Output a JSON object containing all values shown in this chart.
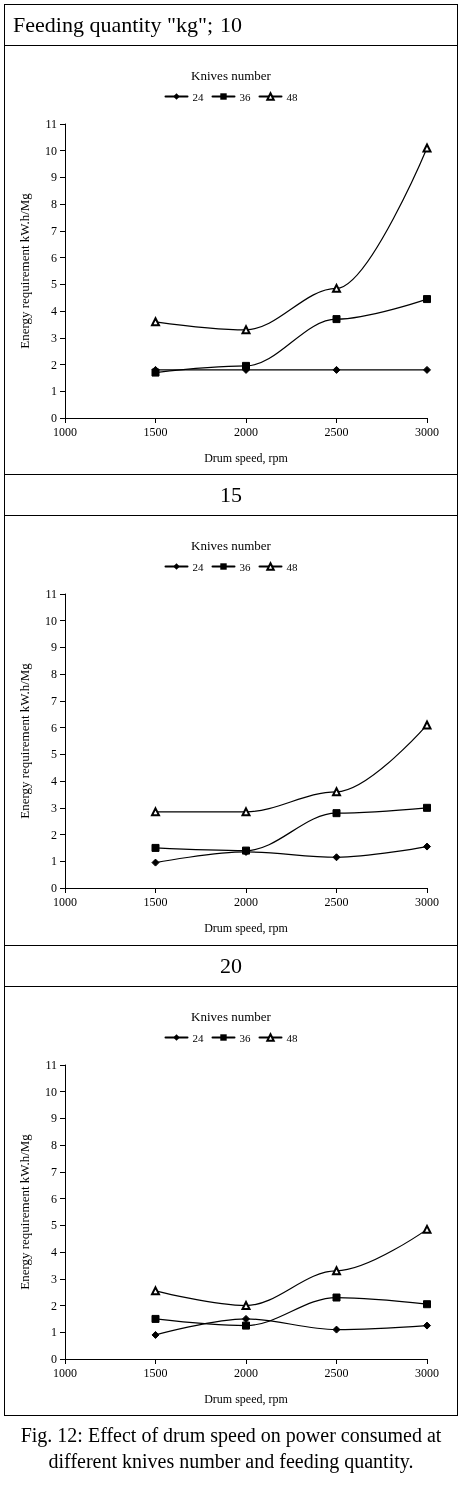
{
  "chart_data": [
    {
      "type": "line",
      "title": "10",
      "annotations": [
        "Feeding quantity \"kg\";",
        "Fig. 12: Effect of drum speed on power consumed at different knives number and feeding quantity."
      ],
      "xlabel": "Drum speed, rpm",
      "ylabel": "Energy requirement kW.h/Mg",
      "legend_title": "Knives number",
      "legend": "top",
      "x": [
        1500,
        2000,
        2500,
        3000
      ],
      "xlim": [
        1000,
        3000
      ],
      "xticks": [
        1000,
        1500,
        2000,
        2500,
        3000
      ],
      "ylim": [
        0,
        11
      ],
      "yticks": [
        0,
        1,
        2,
        3,
        4,
        5,
        6,
        7,
        8,
        9,
        10,
        11
      ],
      "grid": false,
      "line_style": "solid",
      "series": [
        {
          "name": "24",
          "color": "#000000",
          "marker": "diamond",
          "values": [
            1.8,
            1.8,
            1.8,
            1.8
          ]
        },
        {
          "name": "36",
          "color": "#000000",
          "marker": "square",
          "values": [
            1.7,
            1.95,
            3.7,
            4.45
          ]
        },
        {
          "name": "48",
          "color": "#000000",
          "marker": "triangle",
          "values": [
            3.6,
            3.3,
            4.85,
            10.1
          ]
        }
      ]
    },
    {
      "type": "line",
      "title": "15",
      "xlabel": "Drum speed, rpm",
      "ylabel": "Energy requirement kW.h/Mg",
      "legend_title": "Knives number",
      "legend": "top",
      "x": [
        1500,
        2000,
        2500,
        3000
      ],
      "xlim": [
        1000,
        3000
      ],
      "xticks": [
        1000,
        1500,
        2000,
        2500,
        3000
      ],
      "ylim": [
        0,
        11
      ],
      "yticks": [
        0,
        1,
        2,
        3,
        4,
        5,
        6,
        7,
        8,
        9,
        10,
        11
      ],
      "grid": false,
      "line_style": "solid",
      "series": [
        {
          "name": "24",
          "color": "#000000",
          "marker": "diamond",
          "values": [
            0.95,
            1.35,
            1.15,
            1.55
          ]
        },
        {
          "name": "36",
          "color": "#000000",
          "marker": "square",
          "values": [
            1.5,
            1.4,
            2.8,
            3.0
          ]
        },
        {
          "name": "48",
          "color": "#000000",
          "marker": "triangle",
          "values": [
            2.85,
            2.85,
            3.6,
            6.1
          ]
        }
      ]
    },
    {
      "type": "line",
      "title": "20",
      "xlabel": "Drum speed, rpm",
      "ylabel": "Energy requirement kW.h/Mg",
      "legend_title": "Knives number",
      "legend": "top",
      "x": [
        1500,
        2000,
        2500,
        3000
      ],
      "xlim": [
        1000,
        3000
      ],
      "xticks": [
        1000,
        1500,
        2000,
        2500,
        3000
      ],
      "ylim": [
        0,
        11
      ],
      "yticks": [
        0,
        1,
        2,
        3,
        4,
        5,
        6,
        7,
        8,
        9,
        10,
        11
      ],
      "grid": false,
      "line_style": "solid",
      "series": [
        {
          "name": "24",
          "color": "#000000",
          "marker": "diamond",
          "values": [
            0.9,
            1.5,
            1.1,
            1.25
          ]
        },
        {
          "name": "36",
          "color": "#000000",
          "marker": "square",
          "values": [
            1.5,
            1.25,
            2.3,
            2.05
          ]
        },
        {
          "name": "48",
          "color": "#000000",
          "marker": "triangle",
          "values": [
            2.55,
            2.0,
            3.3,
            4.85
          ]
        }
      ]
    }
  ]
}
